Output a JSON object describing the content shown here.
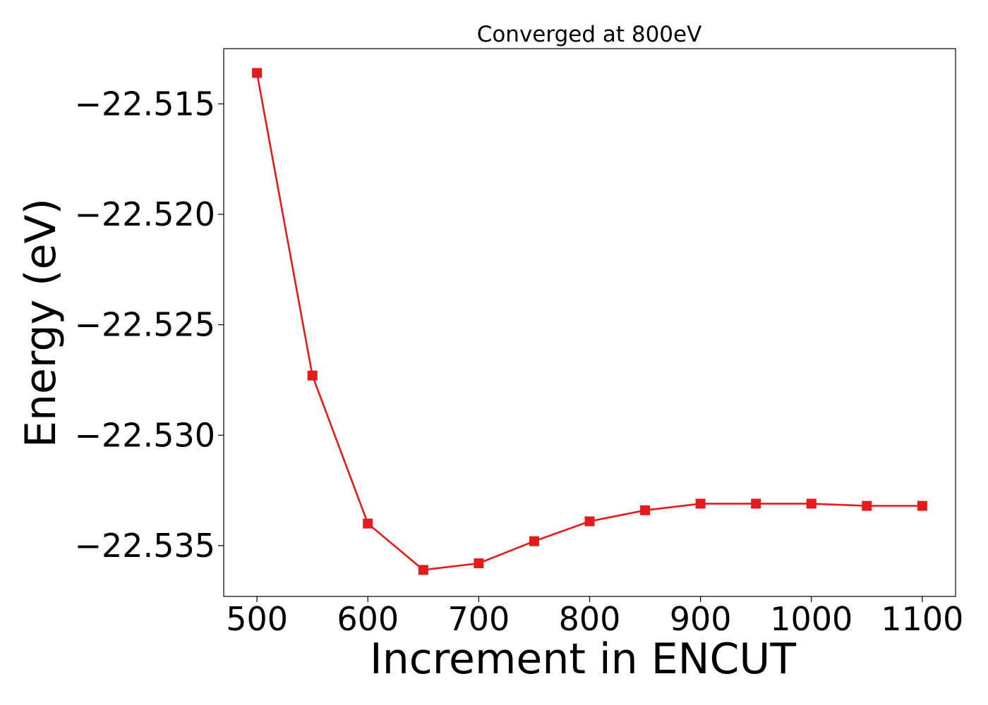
{
  "chart_data": {
    "type": "line",
    "title": "Converged at 800eV",
    "xlabel": "Increment in ENCUT",
    "ylabel": "Energy (eV)",
    "x": [
      500,
      550,
      600,
      650,
      700,
      750,
      800,
      850,
      900,
      950,
      1000,
      1050,
      1100
    ],
    "series": [
      {
        "values": [
          -22.5136,
          -22.5273,
          -22.534,
          -22.5361,
          -22.5358,
          -22.5348,
          -22.5339,
          -22.5334,
          -22.5331,
          -22.5331,
          -22.5331,
          -22.5332,
          -22.5332
        ],
        "color": "#e41a1c",
        "marker": "square"
      }
    ],
    "xlim": [
      470,
      1130
    ],
    "ylim": [
      -22.5373,
      -22.5125
    ],
    "xticks": [
      500,
      600,
      700,
      800,
      900,
      1000,
      1100
    ],
    "xtick_labels": [
      "500",
      "600",
      "700",
      "800",
      "900",
      "1000",
      "1100"
    ],
    "yticks": [
      -22.515,
      -22.52,
      -22.525,
      -22.53,
      -22.535
    ],
    "ytick_labels": [
      "−22.515",
      "−22.520",
      "−22.525",
      "−22.530",
      "−22.535"
    ],
    "grid": false,
    "legend": "none"
  }
}
